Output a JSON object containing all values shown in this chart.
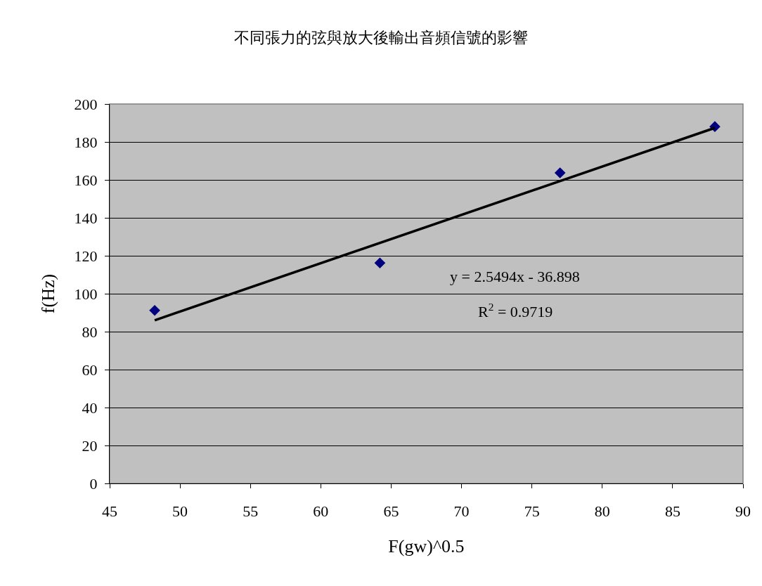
{
  "chart_data": {
    "type": "scatter",
    "title": "不同張力的弦與放大後輸出音頻信號的影響",
    "xlabel": "F(gw)^0.5",
    "ylabel": "f(Hz)",
    "xlim": [
      45,
      90
    ],
    "xticks": [
      45,
      50,
      55,
      60,
      65,
      70,
      75,
      80,
      85,
      90
    ],
    "ylim": [
      0,
      200
    ],
    "yticks": [
      0,
      20,
      40,
      60,
      80,
      100,
      120,
      140,
      160,
      180,
      200
    ],
    "grid": "y",
    "marker": "diamond",
    "series": [
      {
        "color": "#000080",
        "x": [
          48.2,
          64.2,
          77.0,
          88.0
        ],
        "values": [
          91.2,
          116.2,
          163.7,
          188.1
        ]
      },
      {
        "type": "line",
        "color": "#000000",
        "marker": "none",
        "line_style": "solid",
        "x": [
          48.2,
          88.0
        ],
        "values": [
          86.0,
          187.4
        ]
      }
    ],
    "annotations": [
      "y = 2.5494x - 36.898",
      "R$^{2}$ = 0.9719"
    ]
  }
}
